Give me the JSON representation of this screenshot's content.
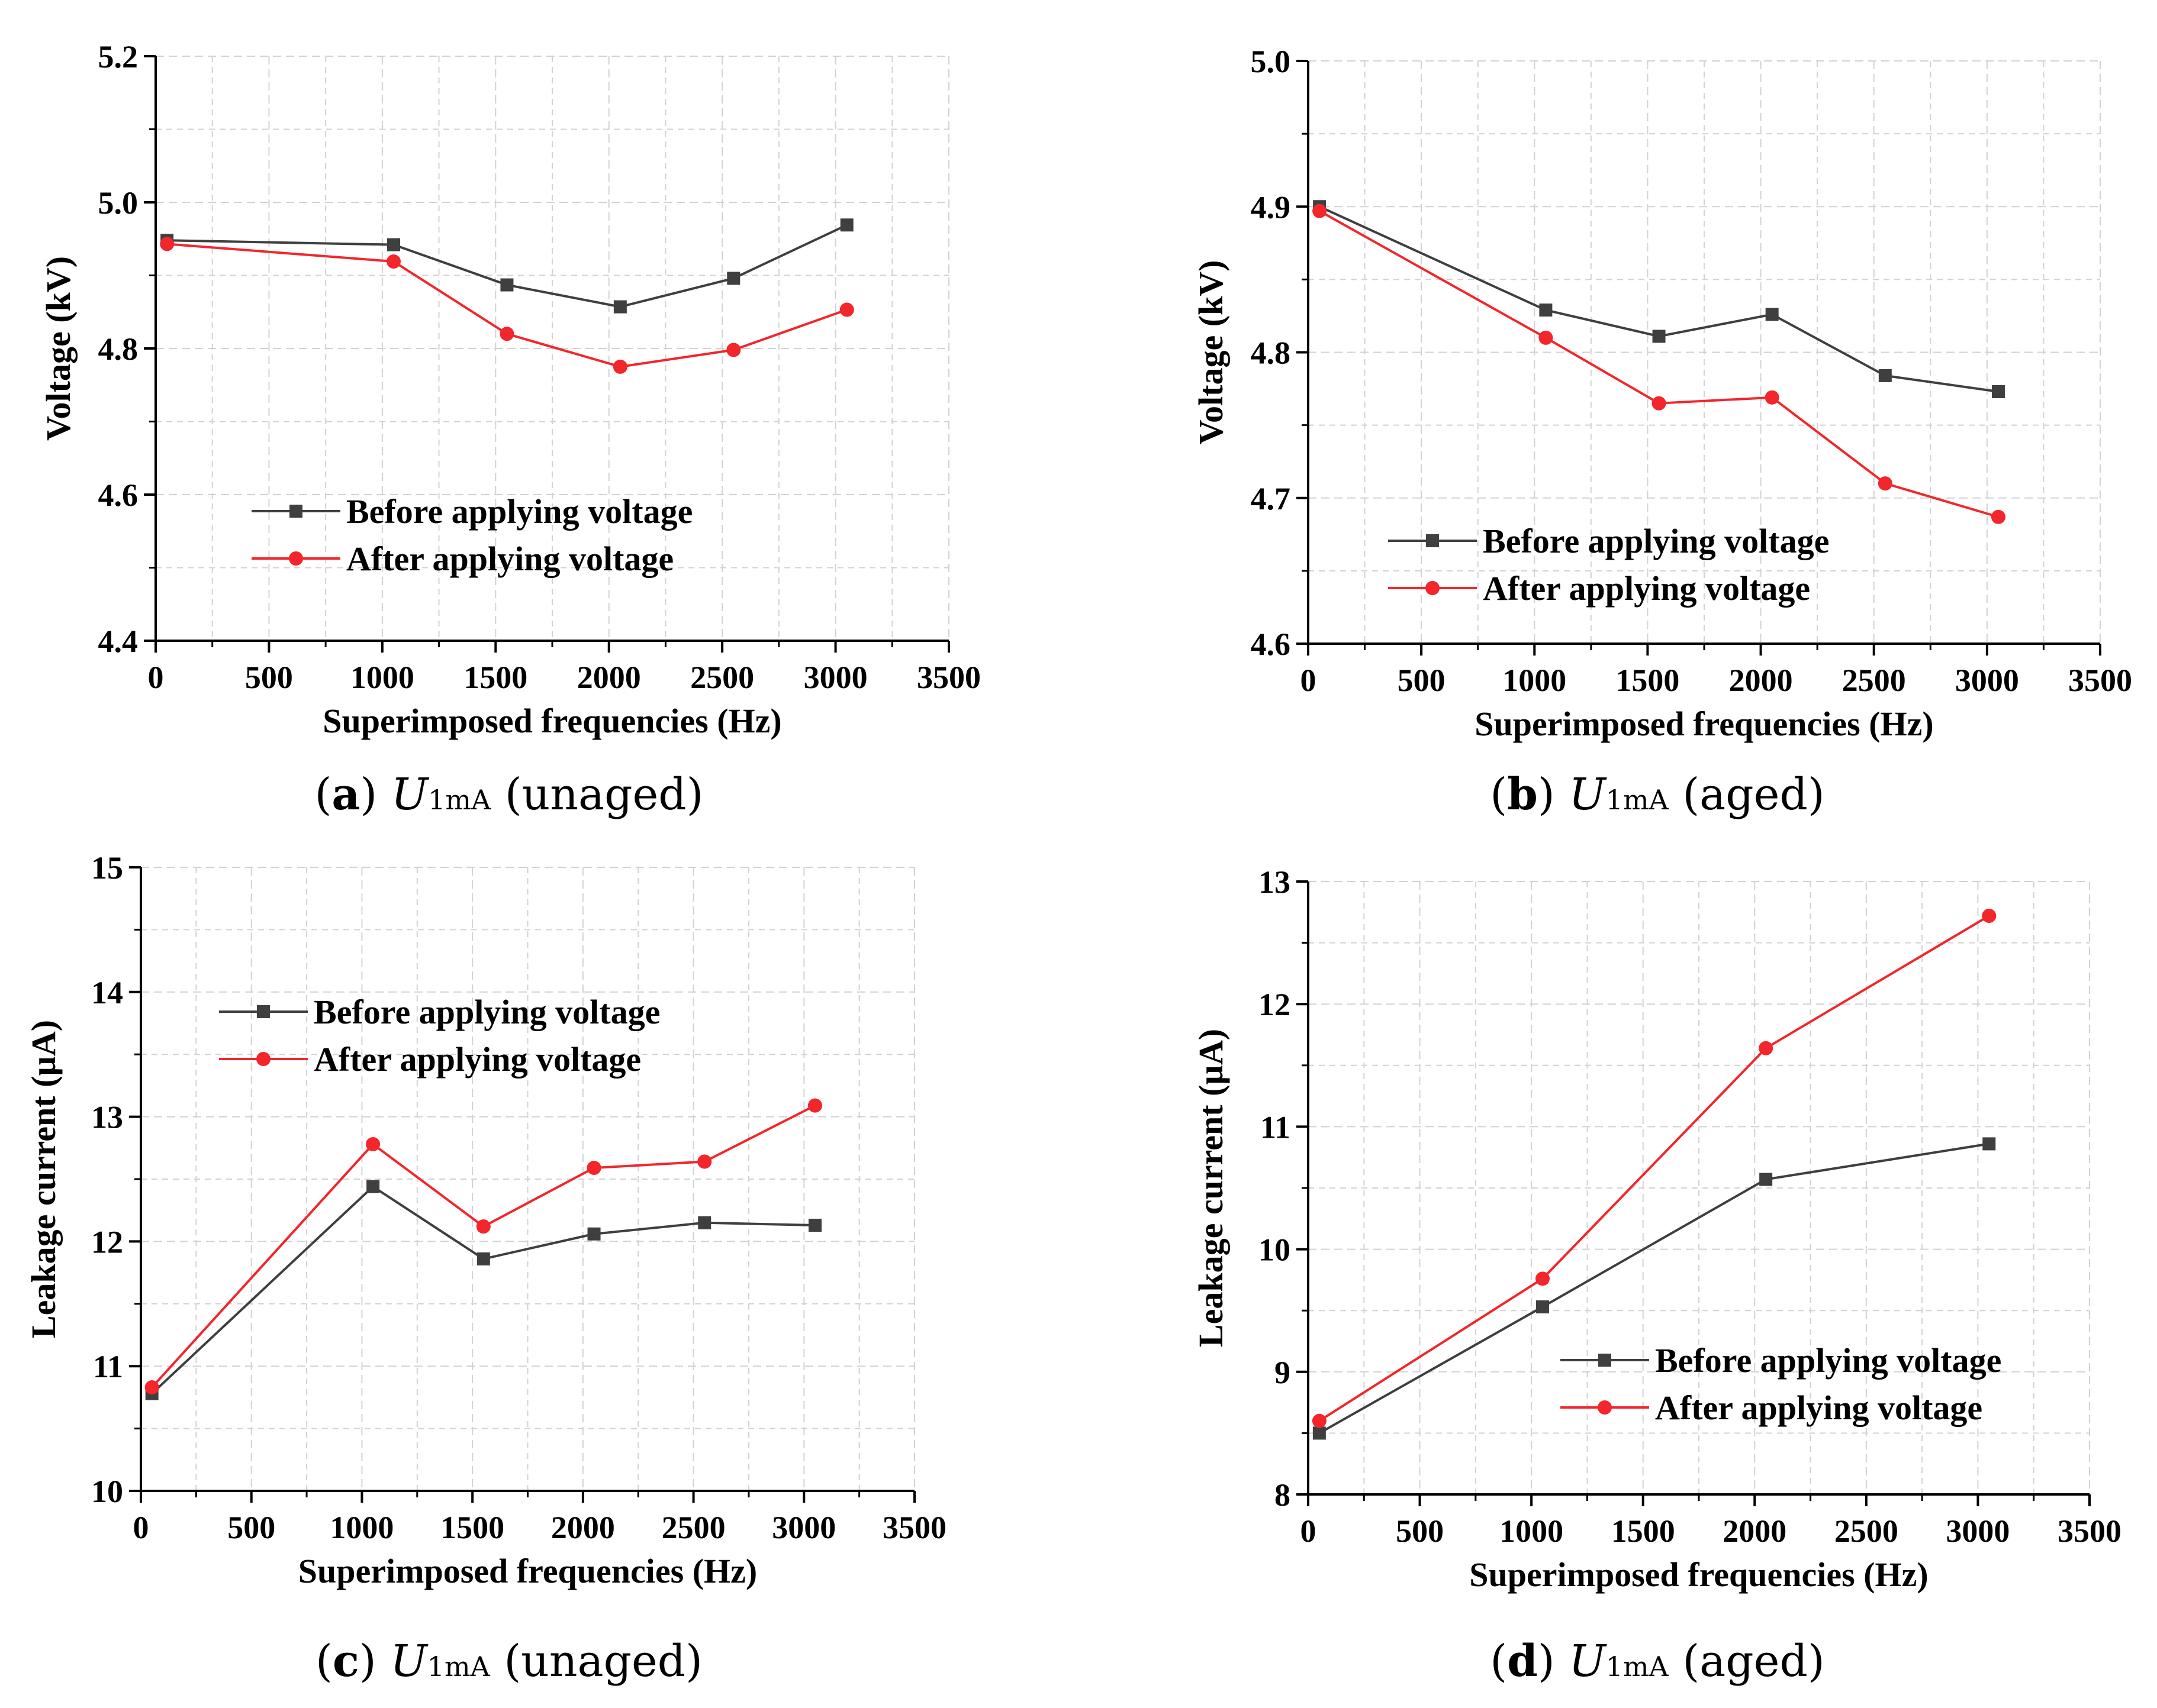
{
  "colors": {
    "before": "#3f3f3f",
    "after": "#f2262b",
    "grid": "#d2d2d2",
    "axis": "#000000"
  },
  "chart_data": [
    {
      "type": "line",
      "id": "a",
      "caption": {
        "label": "a",
        "symbol": "U",
        "subscript": "1mA",
        "note": "(unaged)"
      },
      "xlabel": "Superimposed frequencies (Hz)",
      "ylabel": "Voltage (kV)",
      "xlim": [
        0,
        3500
      ],
      "ylim": [
        4.4,
        5.2
      ],
      "xticks": [
        0,
        500,
        1000,
        1500,
        2000,
        2500,
        3000,
        3500
      ],
      "xtick_labels": [
        "0",
        "500",
        "1000",
        "1500",
        "2000",
        "2500",
        "3000",
        "3500"
      ],
      "yticks": [
        4.4,
        4.6,
        4.8,
        5.0,
        5.2
      ],
      "ytick_labels": [
        "4.4",
        "4.6",
        "4.8",
        "5.0",
        "5.2"
      ],
      "x": [
        50,
        1050,
        1550,
        2050,
        2550,
        3050
      ],
      "series": [
        {
          "name": "Before applying voltage",
          "key": "before",
          "marker": "square",
          "values": [
            4.948,
            4.942,
            4.887,
            4.857,
            4.896,
            4.969
          ]
        },
        {
          "name": "After applying voltage",
          "key": "after",
          "marker": "circle",
          "values": [
            4.943,
            4.919,
            4.82,
            4.775,
            4.798,
            4.853
          ]
        }
      ],
      "legend": "center-left"
    },
    {
      "type": "line",
      "id": "b",
      "caption": {
        "label": "b",
        "symbol": "U",
        "subscript": "1mA",
        "note": "(aged)"
      },
      "xlabel": "Superimposed frequencies (Hz)",
      "ylabel": "Voltage (kV)",
      "xlim": [
        0,
        3500
      ],
      "ylim": [
        4.6,
        5.0
      ],
      "xticks": [
        0,
        500,
        1000,
        1500,
        2000,
        2500,
        3000,
        3500
      ],
      "xtick_labels": [
        "0",
        "500",
        "1000",
        "1500",
        "2000",
        "2500",
        "3000",
        "3500"
      ],
      "yticks": [
        4.6,
        4.7,
        4.8,
        4.9,
        5.0
      ],
      "ytick_labels": [
        "4.6",
        "4.7",
        "4.8",
        "4.9",
        "5.0"
      ],
      "x": [
        50,
        1050,
        1550,
        2050,
        2550,
        3050
      ],
      "series": [
        {
          "name": "Before applying voltage",
          "key": "before",
          "marker": "square",
          "values": [
            4.9,
            4.829,
            4.811,
            4.826,
            4.784,
            4.773
          ]
        },
        {
          "name": "After applying voltage",
          "key": "after",
          "marker": "circle",
          "values": [
            4.897,
            4.81,
            4.765,
            4.769,
            4.71,
            4.687
          ]
        }
      ],
      "legend": "bottom-center"
    },
    {
      "type": "line",
      "id": "c",
      "caption": {
        "label": "c",
        "symbol": "U",
        "subscript": "1mA",
        "note": "(unaged)"
      },
      "xlabel": "Superimposed frequencies (Hz)",
      "ylabel": "Leakage current (µA)",
      "xlim": [
        0,
        3500
      ],
      "ylim": [
        10,
        15
      ],
      "xticks": [
        0,
        500,
        1000,
        1500,
        2000,
        2500,
        3000,
        3500
      ],
      "xtick_labels": [
        "0",
        "500",
        "1000",
        "1500",
        "2000",
        "2500",
        "3000",
        "3500"
      ],
      "yticks": [
        10,
        11,
        12,
        13,
        14,
        15
      ],
      "ytick_labels": [
        "10",
        "11",
        "12",
        "13",
        "14",
        "15"
      ],
      "x": [
        50,
        1050,
        1550,
        2050,
        2550,
        3050
      ],
      "series": [
        {
          "name": "Before applying voltage",
          "key": "before",
          "marker": "square",
          "values": [
            10.78,
            12.44,
            11.86,
            12.06,
            12.15,
            12.13
          ]
        },
        {
          "name": "After applying voltage",
          "key": "after",
          "marker": "circle",
          "values": [
            10.83,
            12.78,
            12.12,
            12.59,
            12.64,
            13.09
          ]
        }
      ],
      "legend": "top-center"
    },
    {
      "type": "line",
      "id": "d",
      "caption": {
        "label": "d",
        "symbol": "U",
        "subscript": "1mA",
        "note": "(aged)"
      },
      "xlabel": "Superimposed frequencies (Hz)",
      "ylabel": "Leakage current (µA)",
      "xlim": [
        0,
        3500
      ],
      "ylim": [
        8,
        13
      ],
      "xticks": [
        0,
        500,
        1000,
        1500,
        2000,
        2500,
        3000,
        3500
      ],
      "xtick_labels": [
        "0",
        "500",
        "1000",
        "1500",
        "2000",
        "2500",
        "3000",
        "3500"
      ],
      "yticks": [
        8,
        9,
        10,
        11,
        12,
        13
      ],
      "ytick_labels": [
        "8",
        "9",
        "10",
        "11",
        "12",
        "13"
      ],
      "x": [
        50,
        1050,
        2050,
        3050
      ],
      "series": [
        {
          "name": "Before applying voltage",
          "key": "before",
          "marker": "square",
          "values": [
            8.5,
            9.53,
            10.57,
            10.86
          ]
        },
        {
          "name": "After applying voltage",
          "key": "after",
          "marker": "circle",
          "values": [
            8.6,
            9.76,
            11.64,
            12.72
          ]
        }
      ],
      "legend": "bottom-center"
    }
  ]
}
